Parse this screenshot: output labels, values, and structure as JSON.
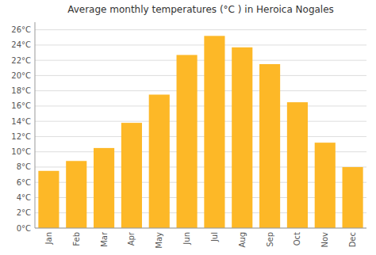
{
  "chart_data": {
    "type": "bar",
    "title": "Average monthly temperatures (°C ) in Heroica Nogales",
    "categories": [
      "Jan",
      "Feb",
      "Mar",
      "Apr",
      "May",
      "Jun",
      "Jul",
      "Aug",
      "Sep",
      "Oct",
      "Nov",
      "Dec"
    ],
    "values": [
      7.5,
      8.8,
      10.5,
      13.8,
      17.5,
      22.7,
      25.2,
      23.7,
      21.5,
      16.5,
      11.2,
      8.0
    ],
    "color": "#FDB827",
    "ylim": [
      0,
      27
    ],
    "yticks": [
      {
        "value": 0,
        "label": "0°C"
      },
      {
        "value": 2,
        "label": "2°C"
      },
      {
        "value": 4,
        "label": "4°C"
      },
      {
        "value": 6,
        "label": "6°C"
      },
      {
        "value": 8,
        "label": "8°C"
      },
      {
        "value": 10,
        "label": "10°C"
      },
      {
        "value": 12,
        "label": "12°C"
      },
      {
        "value": 14,
        "label": "14°C"
      },
      {
        "value": 16,
        "label": "16°C"
      },
      {
        "value": 18,
        "label": "18°C"
      },
      {
        "value": 20,
        "label": "20°C"
      },
      {
        "value": 22,
        "label": "22°C"
      },
      {
        "value": 24,
        "label": "24°C"
      },
      {
        "value": 26,
        "label": "26°C"
      }
    ],
    "grid": true
  }
}
